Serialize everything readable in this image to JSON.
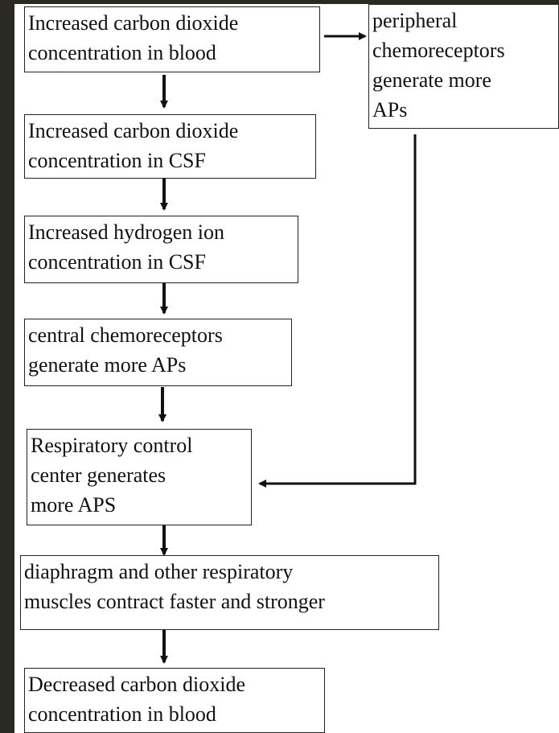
{
  "nodes": [
    {
      "lines": [
        "Increased carbon dioxide",
        "concentration in blood"
      ]
    },
    {
      "lines": [
        "peripheral",
        "chemoreceptors",
        "generate more",
        "APs"
      ]
    },
    {
      "lines": [
        "Increased carbon dioxide",
        "concentration in CSF"
      ]
    },
    {
      "lines": [
        "Increased hydrogen ion",
        "concentration in CSF"
      ]
    },
    {
      "lines": [
        "central chemoreceptors",
        "generate more APs"
      ]
    },
    {
      "lines": [
        "Respiratory control",
        "center generates",
        "more APS"
      ]
    },
    {
      "lines": [
        "diaphragm and other respiratory",
        "muscles contract faster and stronger"
      ]
    },
    {
      "lines": [
        "Decreased carbon dioxide",
        "concentration in blood"
      ]
    }
  ]
}
